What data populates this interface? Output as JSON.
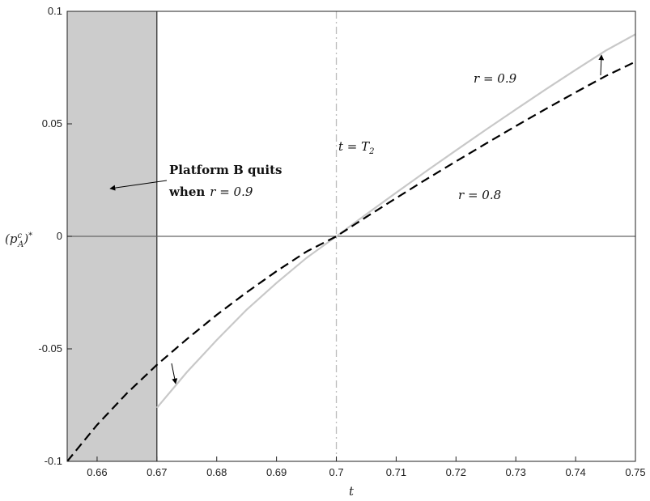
{
  "chart_data": {
    "type": "line",
    "title": "",
    "xlabel": "t",
    "ylabel": "(p_A^c)*",
    "xlim": [
      0.655,
      0.75
    ],
    "ylim": [
      -0.1,
      0.1
    ],
    "xticks": [
      "0.66",
      "0.67",
      "0.68",
      "0.69",
      "0.7",
      "0.71",
      "0.72",
      "0.73",
      "0.74",
      "0.75"
    ],
    "xtick_values": [
      0.66,
      0.67,
      0.68,
      0.69,
      0.7,
      0.71,
      0.72,
      0.73,
      0.74,
      0.75
    ],
    "yticks": [
      "-0.1",
      "-0.05",
      "0",
      "0.05",
      "0.1"
    ],
    "ytick_values": [
      -0.1,
      -0.05,
      0,
      0.05,
      0.1
    ],
    "shaded_region": {
      "x": [
        0.655,
        0.67
      ],
      "color": "#cccccc"
    },
    "vertical_line": {
      "x": 0.7,
      "label": "t = T₂",
      "style": "dash-dot",
      "color": "#bbbbbb"
    },
    "zero_line": {
      "y": 0,
      "color": "#666666"
    },
    "series": [
      {
        "name": "r = 0.8",
        "style": "dashed",
        "color": "#000000",
        "x": [
          0.655,
          0.66,
          0.665,
          0.67,
          0.675,
          0.68,
          0.685,
          0.69,
          0.695,
          0.7,
          0.705,
          0.71,
          0.715,
          0.72,
          0.725,
          0.73,
          0.735,
          0.74,
          0.745,
          0.75
        ],
        "y": [
          -0.1,
          -0.0838,
          -0.0697,
          -0.0571,
          -0.0457,
          -0.0349,
          -0.0249,
          -0.0155,
          -0.0068,
          0.0,
          0.0086,
          0.017,
          0.0253,
          0.0333,
          0.0412,
          0.049,
          0.0566,
          0.064,
          0.0712,
          0.0776
        ]
      },
      {
        "name": "r = 0.9",
        "style": "solid",
        "color": "#c8c8c8",
        "x": [
          0.67,
          0.675,
          0.68,
          0.685,
          0.69,
          0.695,
          0.7,
          0.705,
          0.71,
          0.715,
          0.72,
          0.725,
          0.73,
          0.735,
          0.74,
          0.745,
          0.75
        ],
        "y": [
          -0.0762,
          -0.0604,
          -0.0461,
          -0.0326,
          -0.0207,
          -0.0096,
          0.0,
          0.0098,
          0.0194,
          0.0289,
          0.0382,
          0.0474,
          0.0564,
          0.0653,
          0.074,
          0.0825,
          0.0898
        ]
      }
    ],
    "labels": {
      "r09": "r = 0.9",
      "r08": "r = 0.8",
      "t_eq": "t = T",
      "t_eq_sub": "2",
      "quit_line1": "Platform B quits",
      "quit_line2_word": "when",
      "quit_line2_eq": "r = 0.9"
    },
    "ylabel_parts": {
      "base": "(p",
      "sup": "c",
      "sub": "A",
      "close": ")",
      "star": "*"
    }
  }
}
